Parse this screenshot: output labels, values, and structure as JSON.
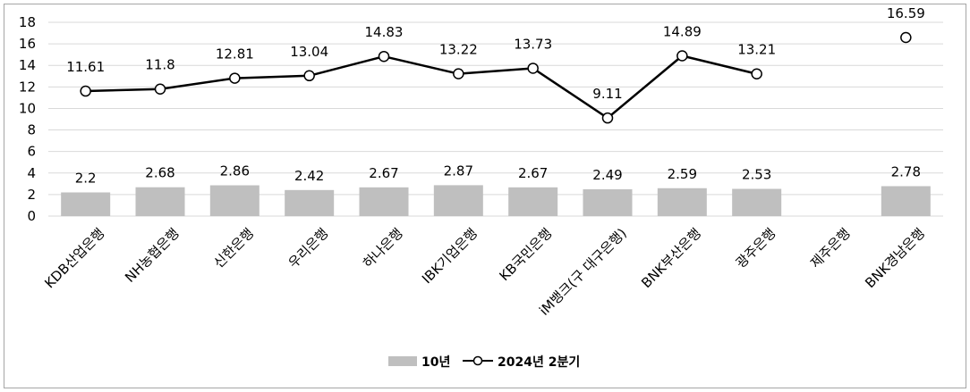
{
  "chart_data": {
    "type": "bar",
    "categories": [
      "KDB산업은행",
      "NH농협은행",
      "신한은행",
      "우리은행",
      "하나은행",
      "IBK기업은행",
      "KB국민은행",
      "iM뱅크(구 대구은행)",
      "BNK부산은행",
      "광주은행",
      "제주은행",
      "BNK경남은행"
    ],
    "series": [
      {
        "name": "10년",
        "type": "bar",
        "color": "#bfbfbf",
        "values": [
          2.2,
          2.68,
          2.86,
          2.42,
          2.67,
          2.87,
          2.67,
          2.49,
          2.59,
          2.53,
          null,
          2.78
        ],
        "labels": [
          "2.2",
          "2.68",
          "2.86",
          "2.42",
          "2.67",
          "2.87",
          "2.67",
          "2.49",
          "2.59",
          "2.53",
          "",
          "2.78"
        ]
      },
      {
        "name": "2024년 2분기",
        "type": "line",
        "color": "#000000",
        "values": [
          11.61,
          11.8,
          12.81,
          13.04,
          14.83,
          13.22,
          13.73,
          9.11,
          14.89,
          13.21,
          null,
          16.59
        ],
        "labels": [
          "11.61",
          "11.8",
          "12.81",
          "13.04",
          "14.83",
          "13.22",
          "13.73",
          "9.11",
          "14.89",
          "13.21",
          "",
          "16.59"
        ]
      }
    ],
    "ylim": [
      0,
      18
    ],
    "yticks": [
      "0",
      "2",
      "4",
      "6",
      "8",
      "10",
      "12",
      "14",
      "16",
      "18"
    ],
    "grid": true,
    "legend_position": "bottom"
  }
}
